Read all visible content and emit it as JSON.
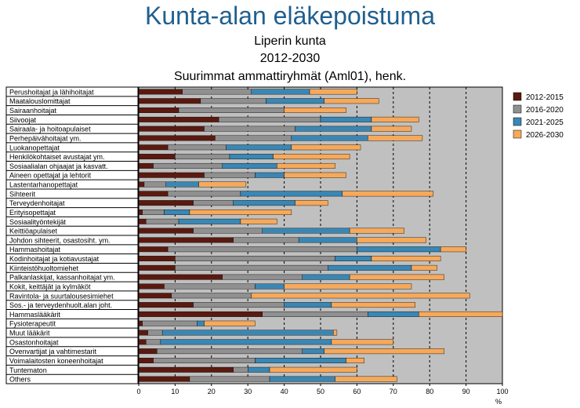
{
  "header": {
    "title": "Kunta-alan eläkepoistuma",
    "subtitle1": "Liperin kunta",
    "subtitle2": "2012-2030",
    "subtitle3": "Suurimmat ammattiryhmät (Aml01), henk."
  },
  "chart_data": {
    "type": "bar",
    "orientation": "horizontal",
    "stacked": true,
    "xlim": [
      0,
      100
    ],
    "xticks": [
      0,
      10,
      20,
      30,
      40,
      50,
      60,
      70,
      80,
      90,
      100
    ],
    "xunit": "%",
    "grid": "vertical dashed lines",
    "legend_position": "right",
    "categories": [
      "Perushoitajat ja lähihoitajat",
      "Maatalouslomittajat",
      "Sairaanhoitajat",
      "Siivoojat",
      "Sairaala- ja hoitoapulaiset",
      "Perhepäivähoitajat ym.",
      "Luokanopettajat",
      "Henkilökohtaiset avustajat ym.",
      "Sosiaalialan ohjaajat ja kasvatt.",
      "Aineen opettajat ja lehtorit",
      "Lastentarhanopettajat",
      "Sihteerit",
      "Terveydenhoitajat",
      "Erityisopettajat",
      "Sosiaalityöntekijät",
      "Keittiöapulaiset",
      "Johdon sihteerit, osastosiht. ym.",
      "Hammashoitajat",
      "Kodinhoitajat ja kotiavustajat",
      "Kiinteistöhuoltomiehet",
      "Palkanlaskijat, kassanhoitajat ym.",
      "Kokit, keittäjät ja kylmäköt",
      "Ravintola- ja suurtalousesimiehet",
      "Sos.- ja terveydenhuolt.alan joht.",
      "Hammaslääkärit",
      "Fysioterapeutit",
      "Muut lääkärit",
      "Osastonhoitajat",
      "Ovenvartijat ja vahtimestarit",
      "Voimalaitosten koneenhoitajat",
      "Tuntematon",
      "Others"
    ],
    "series": [
      {
        "name": "2012-2015",
        "color": "#5a1a10",
        "values": [
          12,
          17,
          11,
          22,
          18,
          21,
          8,
          10,
          4,
          18,
          1.5,
          8,
          15,
          1,
          2,
          15,
          26,
          8,
          10,
          10,
          23,
          7,
          9,
          15,
          34,
          1,
          2.5,
          2,
          5,
          4,
          26,
          14
        ]
      },
      {
        "name": "2016-2020",
        "color": "#909090",
        "values": [
          19,
          18,
          29,
          28,
          25,
          21,
          16,
          15,
          19,
          14,
          6,
          20,
          11,
          6,
          9,
          19,
          18,
          52,
          44,
          42,
          22,
          25,
          22,
          25,
          29,
          15,
          4,
          4,
          40,
          28,
          4,
          22
        ]
      },
      {
        "name": "2021-2025",
        "color": "#3a87b4",
        "values": [
          16,
          16,
          0,
          14,
          21,
          21,
          18,
          12,
          15,
          8,
          9,
          28,
          17,
          7,
          17,
          24,
          16,
          23,
          10,
          23,
          13,
          8,
          0,
          13,
          14,
          2,
          47,
          47,
          6,
          25,
          6,
          18
        ]
      },
      {
        "name": "2026-2030",
        "color": "#f6a95b",
        "values": [
          13,
          15,
          17,
          13,
          11,
          15,
          19,
          21,
          16,
          17,
          13,
          25,
          9,
          28,
          10,
          15,
          19,
          7,
          19,
          7,
          26,
          35,
          60,
          23,
          23,
          14,
          1,
          17,
          33,
          5,
          24,
          17
        ]
      }
    ]
  }
}
